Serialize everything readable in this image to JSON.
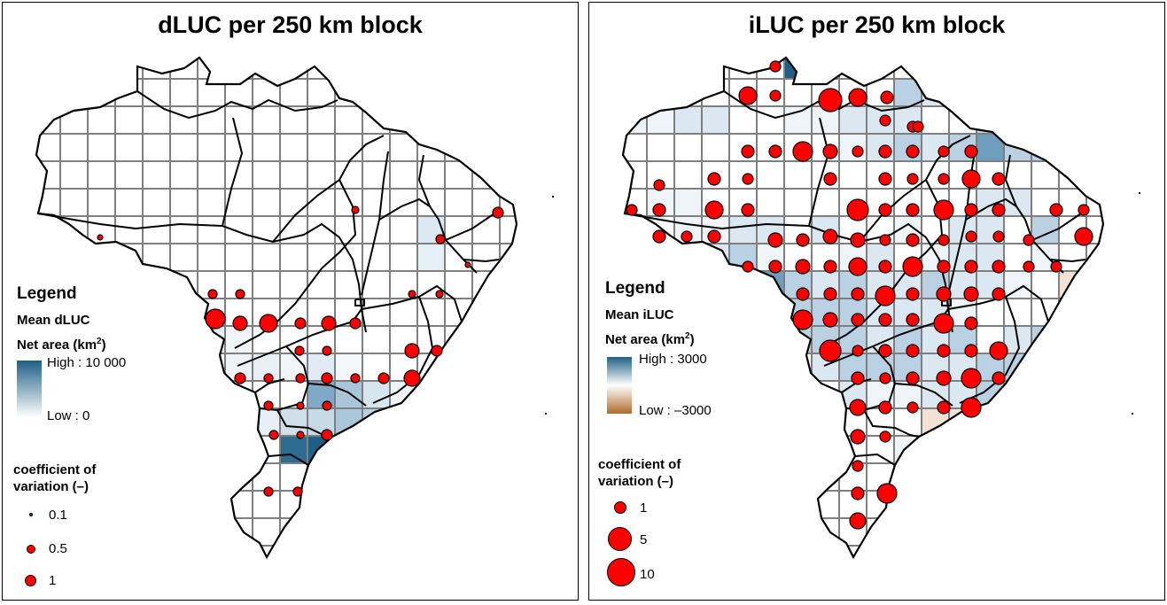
{
  "left": {
    "title": "dLUC per 250 km block",
    "legend": {
      "heading": "Legend",
      "variable": "Mean dLUC",
      "unit_prefix": "Net area (km",
      "unit_exp": "2",
      "unit_suffix": ")",
      "high_label": "High : 10 000",
      "low_label": "Low : 0",
      "ramp_high_color": "#1f5f86",
      "ramp_low_color": "#ffffff",
      "cv_title_line1": "coefficient of",
      "cv_title_line2": "variation (–)",
      "cv_items": [
        {
          "label": "0.1",
          "value": 0.1
        },
        {
          "label": "0.5",
          "value": 0.5
        },
        {
          "label": "1",
          "value": 1
        }
      ]
    }
  },
  "right": {
    "title": "iLUC per 250 km block",
    "legend": {
      "heading": "Legend",
      "variable": "Mean iLUC",
      "unit_prefix": "Net area (km",
      "unit_exp": "2",
      "unit_suffix": ")",
      "high_label": "High : 3000",
      "low_label": "Low : –3000",
      "ramp_high_color": "#1f5f86",
      "ramp_mid_color": "#ffffff",
      "ramp_low_color": "#b06a2b",
      "cv_title_line1": "coefficient of",
      "cv_title_line2": "variation (–)",
      "cv_items": [
        {
          "label": "1",
          "value": 1
        },
        {
          "label": "5",
          "value": 5
        },
        {
          "label": "10",
          "value": 10
        }
      ]
    }
  },
  "colors": {
    "grid_line": "#7f7f7f",
    "border": "#000000",
    "dot_fill": "#ff0000",
    "high": "#1f5f86",
    "low_brown": "#b06a2b"
  }
}
